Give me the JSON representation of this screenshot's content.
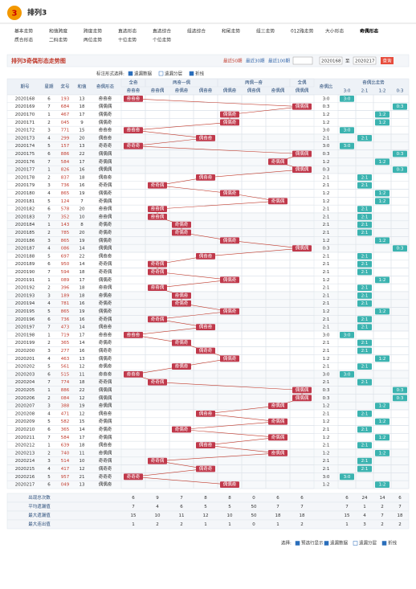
{
  "header": {
    "logo": "3",
    "title": "排列3"
  },
  "nav": [
    "基本走势",
    "和值跨度",
    "跨度走势",
    "直选形态",
    "直选综合",
    "组选综合",
    "和尾走势",
    "组三走势",
    "012路走势",
    "大小形态",
    "奇偶形态",
    "质合形态",
    "二码走势",
    "两位走势",
    "十位走势",
    "个位走势"
  ],
  "active_nav": 10,
  "toolbar": {
    "title": "排列3奇偶形态走势图",
    "ranges": [
      "最近50期",
      "最近30期",
      "最近100期"
    ],
    "from": "2020168",
    "to_label": "至",
    "to": "2020217",
    "button": "查询"
  },
  "options": {
    "label": "标注形式选择:",
    "items": [
      "遗漏数据",
      "遗漏分层",
      "折线"
    ]
  },
  "table": {
    "headers": {
      "period": "期号",
      "weekday": "星期",
      "number": "奖号",
      "sum": "和值",
      "pattern": "奇偶形态",
      "ratio": "奇偶比",
      "ratio_group": "奇偶比走势"
    },
    "pattern_groups": [
      "全奇",
      "两奇一偶",
      "两偶一奇",
      "全偶"
    ],
    "pattern_columns": [
      "奇奇奇",
      "奇奇偶",
      "奇偶奇",
      "偶奇奇",
      "偶偶奇",
      "偶奇偶",
      "奇偶偶",
      "偶偶偶"
    ],
    "ratio_columns": [
      "3:0",
      "2:1",
      "1:2",
      "0:3"
    ],
    "rows": [
      [
        "2020168",
        6,
        "193",
        13,
        "3:0",
        "奇奇奇"
      ],
      [
        "2020169",
        7,
        "684",
        18,
        "0:3",
        "偶偶偶"
      ],
      [
        "2020170",
        1,
        "467",
        17,
        "1:2",
        "偶偶奇"
      ],
      [
        "2020171",
        2,
        "045",
        9,
        "1:2",
        "偶偶奇"
      ],
      [
        "2020172",
        3,
        "771",
        15,
        "3:0",
        "奇奇奇"
      ],
      [
        "2020173",
        4,
        "299",
        20,
        "2:1",
        "偶奇奇"
      ],
      [
        "2020174",
        5,
        "157",
        13,
        "3:0",
        "奇奇奇"
      ],
      [
        "2020175",
        6,
        "886",
        22,
        "0:3",
        "偶偶偶"
      ],
      [
        "2020176",
        7,
        "584",
        17,
        "1:2",
        "奇偶偶"
      ],
      [
        "2020177",
        1,
        "826",
        16,
        "0:3",
        "偶偶偶"
      ],
      [
        "2020178",
        2,
        "837",
        18,
        "2:1",
        "偶奇奇"
      ],
      [
        "2020179",
        3,
        "736",
        16,
        "2:1",
        "奇奇偶"
      ],
      [
        "2020180",
        4,
        "865",
        19,
        "1:2",
        "偶偶奇"
      ],
      [
        "2020181",
        5,
        "124",
        7,
        "1:2",
        "奇偶偶"
      ],
      [
        "2020182",
        6,
        "578",
        20,
        "2:1",
        "奇奇偶"
      ],
      [
        "2020183",
        7,
        "352",
        10,
        "2:1",
        "奇奇偶"
      ],
      [
        "2020184",
        1,
        "143",
        8,
        "2:1",
        "奇偶奇"
      ],
      [
        "2020185",
        2,
        "785",
        20,
        "2:1",
        "奇偶奇"
      ],
      [
        "2020186",
        3,
        "865",
        19,
        "1:2",
        "偶偶奇"
      ],
      [
        "2020187",
        4,
        "086",
        14,
        "0:3",
        "偶偶偶"
      ],
      [
        "2020188",
        5,
        "697",
        22,
        "2:1",
        "偶奇奇"
      ],
      [
        "2020189",
        6,
        "950",
        14,
        "2:1",
        "奇奇偶"
      ],
      [
        "2020190",
        7,
        "594",
        18,
        "2:1",
        "奇奇偶"
      ],
      [
        "2020191",
        1,
        "089",
        17,
        "1:2",
        "偶偶奇"
      ],
      [
        "2020192",
        2,
        "396",
        18,
        "2:1",
        "奇奇偶"
      ],
      [
        "2020193",
        3,
        "189",
        18,
        "2:1",
        "奇偶奇"
      ],
      [
        "2020194",
        4,
        "781",
        16,
        "2:1",
        "奇偶奇"
      ],
      [
        "2020195",
        5,
        "865",
        19,
        "1:2",
        "偶偶奇"
      ],
      [
        "2020196",
        6,
        "736",
        16,
        "2:1",
        "奇奇偶"
      ],
      [
        "2020197",
        7,
        "473",
        14,
        "2:1",
        "偶奇奇"
      ],
      [
        "2020198",
        1,
        "719",
        17,
        "3:0",
        "奇奇奇"
      ],
      [
        "2020199",
        2,
        "365",
        14,
        "2:1",
        "奇偶奇"
      ],
      [
        "2020200",
        3,
        "277",
        16,
        "2:1",
        "偶奇奇"
      ],
      [
        "2020201",
        4,
        "463",
        13,
        "1:2",
        "偶偶奇"
      ],
      [
        "2020202",
        5,
        "561",
        12,
        "2:1",
        "奇偶奇"
      ],
      [
        "2020203",
        6,
        "515",
        11,
        "3:0",
        "奇奇奇"
      ],
      [
        "2020204",
        7,
        "774",
        18,
        "2:1",
        "奇奇偶"
      ],
      [
        "2020205",
        1,
        "886",
        22,
        "0:3",
        "偶偶偶"
      ],
      [
        "2020206",
        2,
        "084",
        12,
        "0:3",
        "偶偶偶"
      ],
      [
        "2020207",
        3,
        "388",
        19,
        "1:2",
        "奇偶偶"
      ],
      [
        "2020208",
        4,
        "471",
        12,
        "2:1",
        "偶奇奇"
      ],
      [
        "2020209",
        5,
        "582",
        15,
        "1:2",
        "奇偶偶"
      ],
      [
        "2020210",
        6,
        "365",
        14,
        "2:1",
        "奇偶奇"
      ],
      [
        "2020211",
        7,
        "584",
        17,
        "1:2",
        "奇偶偶"
      ],
      [
        "2020212",
        1,
        "639",
        18,
        "2:1",
        "偶奇奇"
      ],
      [
        "2020213",
        2,
        "740",
        11,
        "1:2",
        "奇偶偶"
      ],
      [
        "2020214",
        3,
        "514",
        10,
        "2:1",
        "奇奇偶"
      ],
      [
        "2020215",
        4,
        "417",
        12,
        "2:1",
        "偶奇奇"
      ],
      [
        "2020216",
        5,
        "957",
        21,
        "3:0",
        "奇奇奇"
      ],
      [
        "2020217",
        6,
        "049",
        13,
        "1:2",
        "偶偶奇"
      ]
    ],
    "stats": [
      {
        "label": "出现总次数",
        "values": [
          6,
          9,
          7,
          8,
          8,
          0,
          6,
          6,
          6,
          24,
          14,
          6
        ]
      },
      {
        "label": "平均遗漏值",
        "values": [
          7,
          4,
          6,
          5,
          5,
          50,
          7,
          7,
          7,
          1,
          2,
          7
        ]
      },
      {
        "label": "最大遗漏值",
        "values": [
          15,
          10,
          11,
          12,
          10,
          50,
          18,
          18,
          15,
          4,
          7,
          18
        ]
      },
      {
        "label": "最大连出值",
        "values": [
          1,
          2,
          2,
          1,
          1,
          0,
          1,
          2,
          1,
          3,
          2,
          2
        ]
      }
    ]
  },
  "footer": {
    "label": "选择:",
    "items": [
      "预选行显示",
      "遗漏数据",
      "遗漏分层",
      "折线"
    ]
  }
}
